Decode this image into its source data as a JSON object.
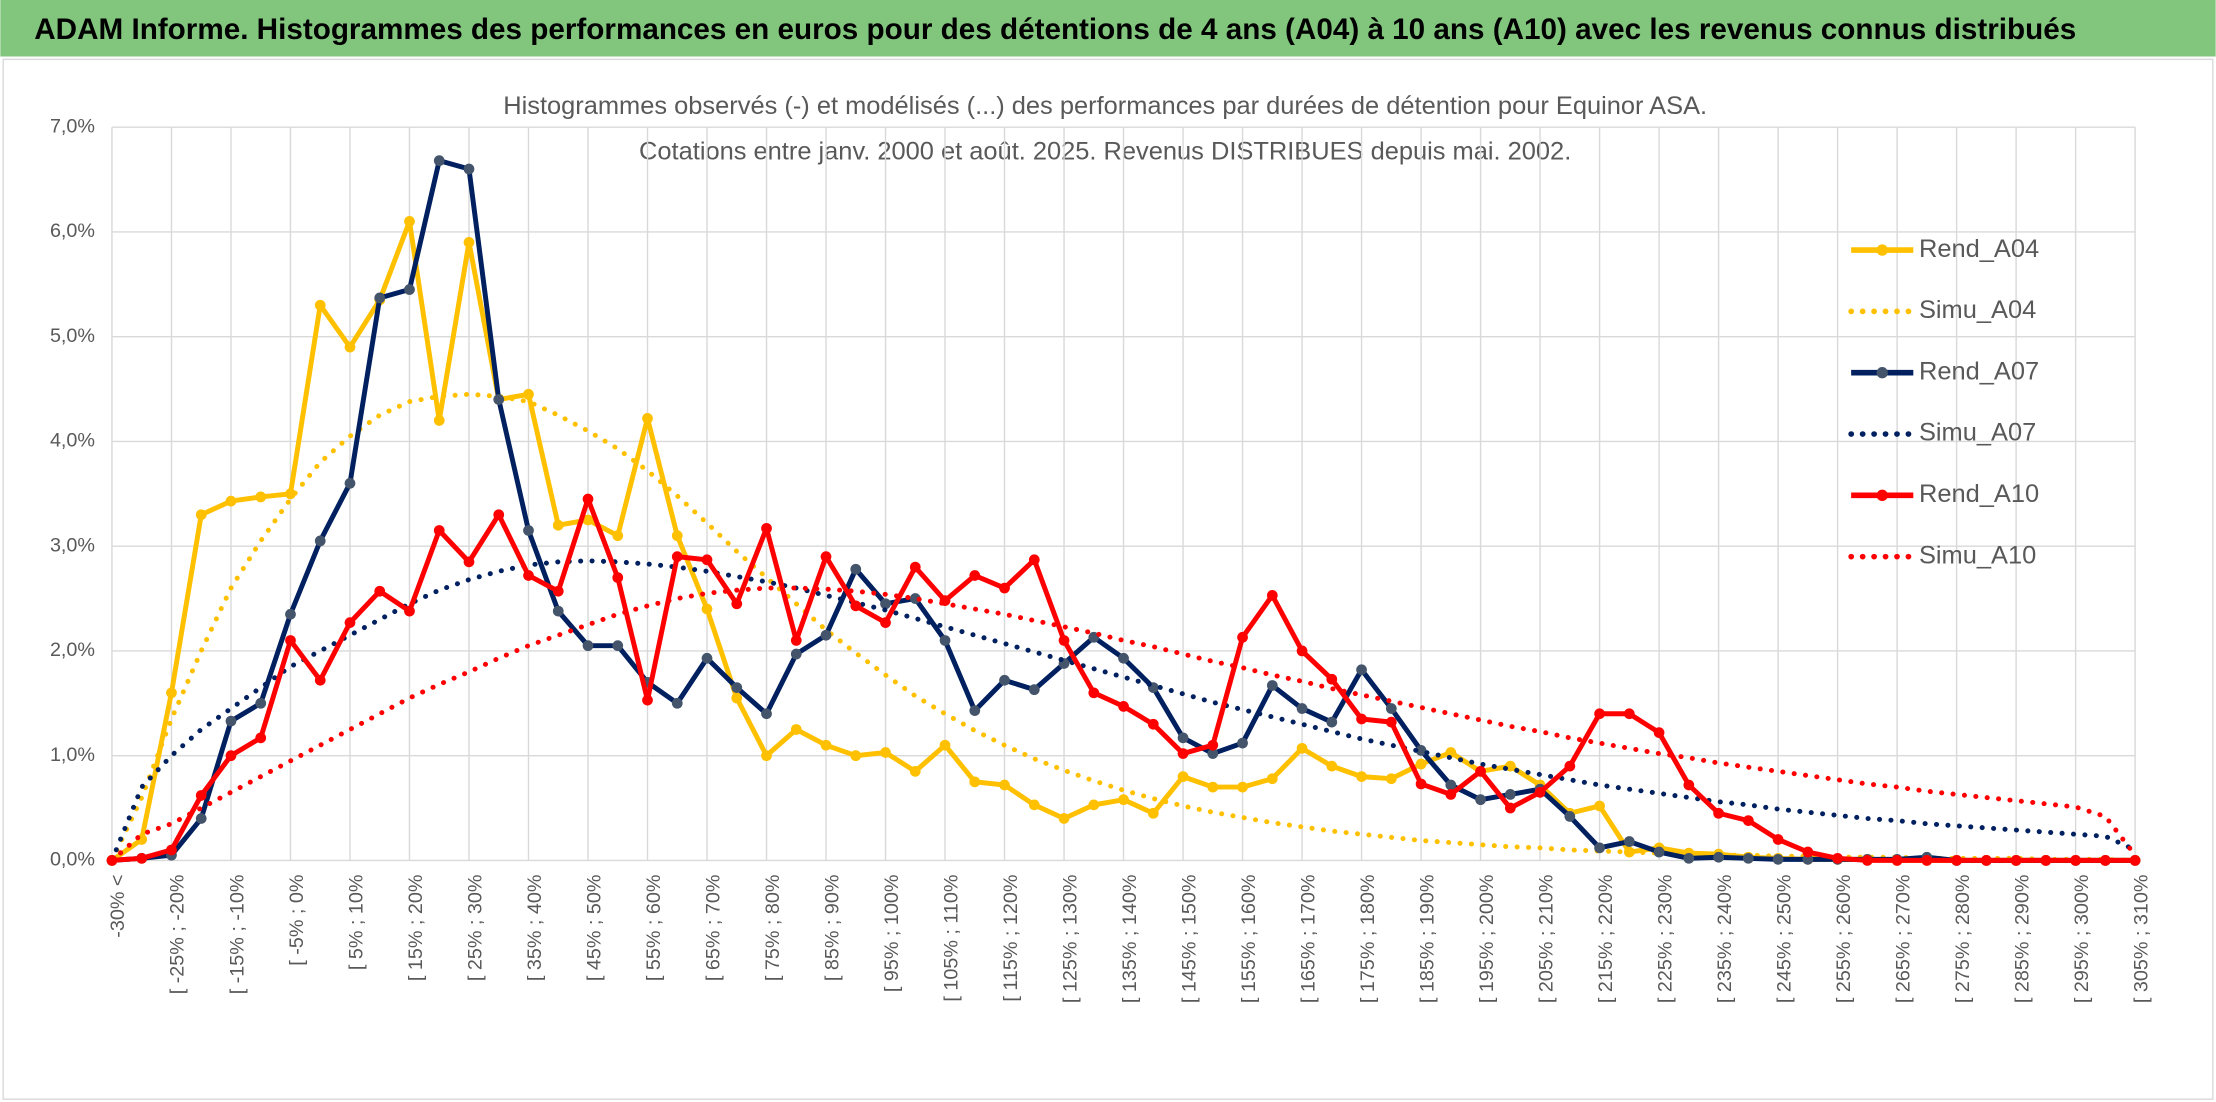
{
  "header": {
    "title": "ADAM Informe. Histogrammes des performances en euros pour des détentions de 4 ans (A04) à 10 ans (A10) avec les revenus connus distribués"
  },
  "chart_data": {
    "type": "line",
    "title": [
      "Histogrammes observés (-) et modélisés (...) des performances par durées de détention pour Equinor ASA.",
      "Cotations entre janv. 2000 et août. 2025. Revenus DISTRIBUES depuis mai. 2002."
    ],
    "categories": [
      "-30% <",
      null,
      "[ -25% ; -20%",
      null,
      "[ -15% ; -10%",
      null,
      "[ -5% ; 0%",
      null,
      "[ 5% ; 10%",
      null,
      "[ 15% ; 20%",
      null,
      "[ 25% ; 30%",
      null,
      "[ 35% ; 40%",
      null,
      "[ 45% ; 50%",
      null,
      "[ 55% ; 60%",
      null,
      "[ 65% ; 70%",
      null,
      "[ 75% ; 80%",
      null,
      "[ 85% ; 90%",
      null,
      "[ 95% ; 100%",
      null,
      "[ 105% ; 110%",
      null,
      "[ 115% ; 120%",
      null,
      "[ 125% ; 130%",
      null,
      "[ 135% ; 140%",
      null,
      "[ 145% ; 150%",
      null,
      "[ 155% ; 160%",
      null,
      "[ 165% ; 170%",
      null,
      "[ 175% ; 180%",
      null,
      "[ 185% ; 190%",
      null,
      "[ 195% ; 200%",
      null,
      "[ 205% ; 210%",
      null,
      "[ 215% ; 220%",
      null,
      "[ 225% ; 230%",
      null,
      "[ 235% ; 240%",
      null,
      "[ 245% ; 250%",
      null,
      "[ 255% ; 260%",
      null,
      "[ 265% ; 270%",
      null,
      "[ 275% ; 280%",
      null,
      "[ 285% ; 290%",
      null,
      "[ 295% ; 300%",
      null,
      "[ 305% ; 310%"
    ],
    "series": [
      {
        "name": "Rend_A04",
        "color": "#FFC000",
        "line_style": "solid",
        "markers": true,
        "values": [
          0,
          0.2,
          1.6,
          3.3,
          3.43,
          3.47,
          3.5,
          5.3,
          4.9,
          5.35,
          6.1,
          4.2,
          5.9,
          4.4,
          4.45,
          3.2,
          3.25,
          3.1,
          4.22,
          3.1,
          2.4,
          1.55,
          1.0,
          1.25,
          1.1,
          1.0,
          1.03,
          0.85,
          1.1,
          0.75,
          0.72,
          0.53,
          0.4,
          0.53,
          0.58,
          0.45,
          0.8,
          0.7,
          0.7,
          0.78,
          1.07,
          0.9,
          0.8,
          0.78,
          0.92,
          1.03,
          0.85,
          0.9,
          0.72,
          0.45,
          0.52,
          0.08,
          0.12,
          0.07,
          0.06,
          0.03,
          0.02,
          0.01,
          0.01,
          0.01,
          0,
          0,
          0,
          0,
          0,
          0,
          0,
          0,
          0
        ]
      },
      {
        "name": "Simu_A04",
        "color": "#FFC000",
        "line_style": "dotted",
        "markers": false,
        "values": [
          0,
          0.6,
          1.35,
          2.0,
          2.6,
          3.05,
          3.45,
          3.8,
          4.05,
          4.25,
          4.38,
          4.43,
          4.45,
          4.43,
          4.38,
          4.25,
          4.1,
          3.93,
          3.72,
          3.48,
          3.22,
          2.95,
          2.7,
          2.45,
          2.2,
          1.98,
          1.77,
          1.57,
          1.4,
          1.24,
          1.1,
          0.97,
          0.86,
          0.76,
          0.67,
          0.59,
          0.52,
          0.46,
          0.41,
          0.36,
          0.32,
          0.28,
          0.25,
          0.22,
          0.19,
          0.17,
          0.15,
          0.13,
          0.12,
          0.1,
          0.09,
          0.08,
          0.07,
          0.06,
          0.05,
          0.05,
          0.04,
          0.04,
          0.03,
          0.03,
          0.03,
          0.02,
          0.02,
          0.02,
          0.02,
          0.01,
          0.01,
          0.01,
          0
        ]
      },
      {
        "name": "Rend_A07",
        "color": "#002060",
        "line_style": "solid",
        "markers": true,
        "marker_color": "#44546A",
        "values": [
          0,
          0.02,
          0.05,
          0.4,
          1.33,
          1.5,
          2.35,
          3.05,
          3.6,
          5.37,
          5.45,
          6.68,
          6.6,
          4.4,
          3.15,
          2.38,
          2.05,
          2.05,
          1.7,
          1.5,
          1.93,
          1.65,
          1.4,
          1.97,
          2.15,
          2.78,
          2.45,
          2.5,
          2.1,
          1.43,
          1.72,
          1.63,
          1.88,
          2.13,
          1.93,
          1.65,
          1.17,
          1.02,
          1.12,
          1.67,
          1.45,
          1.32,
          1.82,
          1.45,
          1.05,
          0.72,
          0.58,
          0.63,
          0.68,
          0.42,
          0.12,
          0.18,
          0.08,
          0.02,
          0.03,
          0.02,
          0.01,
          0.01,
          0.01,
          0.01,
          0.01,
          0.03,
          0,
          0,
          0,
          0,
          0,
          0,
          0
        ]
      },
      {
        "name": "Simu_A07",
        "color": "#002060",
        "line_style": "dotted",
        "markers": false,
        "values": [
          0,
          0.7,
          1.0,
          1.25,
          1.45,
          1.65,
          1.85,
          2.0,
          2.15,
          2.3,
          2.45,
          2.58,
          2.68,
          2.76,
          2.82,
          2.85,
          2.86,
          2.85,
          2.83,
          2.8,
          2.76,
          2.71,
          2.66,
          2.6,
          2.53,
          2.46,
          2.39,
          2.31,
          2.23,
          2.15,
          2.07,
          1.99,
          1.91,
          1.83,
          1.75,
          1.67,
          1.59,
          1.51,
          1.44,
          1.37,
          1.3,
          1.23,
          1.16,
          1.1,
          1.04,
          0.98,
          0.92,
          0.87,
          0.82,
          0.77,
          0.72,
          0.68,
          0.64,
          0.6,
          0.56,
          0.53,
          0.49,
          0.46,
          0.43,
          0.4,
          0.38,
          0.35,
          0.33,
          0.31,
          0.29,
          0.27,
          0.25,
          0.23,
          0.1
        ]
      },
      {
        "name": "Rend_A10",
        "color": "#FF0000",
        "line_style": "solid",
        "markers": true,
        "values": [
          0,
          0.02,
          0.1,
          0.62,
          1.0,
          1.17,
          2.1,
          1.72,
          2.27,
          2.57,
          2.38,
          3.15,
          2.85,
          3.3,
          2.72,
          2.57,
          3.45,
          2.7,
          1.53,
          2.9,
          2.87,
          2.45,
          3.17,
          2.1,
          2.9,
          2.43,
          2.27,
          2.8,
          2.48,
          2.72,
          2.6,
          2.87,
          2.1,
          1.6,
          1.47,
          1.3,
          1.02,
          1.1,
          2.13,
          2.53,
          2.0,
          1.73,
          1.35,
          1.32,
          0.73,
          0.63,
          0.85,
          0.5,
          0.65,
          0.9,
          1.4,
          1.4,
          1.22,
          0.72,
          0.45,
          0.38,
          0.2,
          0.08,
          0.02,
          0,
          0,
          0,
          0,
          0,
          0,
          0,
          0,
          0,
          0
        ]
      },
      {
        "name": "Simu_A10",
        "color": "#FF0000",
        "line_style": "dotted",
        "markers": false,
        "values": [
          0,
          0.25,
          0.35,
          0.5,
          0.65,
          0.8,
          0.95,
          1.1,
          1.25,
          1.4,
          1.55,
          1.68,
          1.8,
          1.93,
          2.05,
          2.15,
          2.25,
          2.35,
          2.43,
          2.5,
          2.55,
          2.58,
          2.6,
          2.6,
          2.59,
          2.57,
          2.54,
          2.5,
          2.45,
          2.4,
          2.35,
          2.29,
          2.23,
          2.17,
          2.1,
          2.04,
          1.97,
          1.9,
          1.84,
          1.77,
          1.71,
          1.64,
          1.58,
          1.52,
          1.46,
          1.4,
          1.34,
          1.28,
          1.23,
          1.17,
          1.12,
          1.07,
          1.02,
          0.98,
          0.93,
          0.89,
          0.85,
          0.81,
          0.77,
          0.73,
          0.7,
          0.66,
          0.63,
          0.6,
          0.57,
          0.54,
          0.51,
          0.42,
          0.05
        ]
      }
    ],
    "ylim": [
      0,
      7
    ],
    "yticks": [
      {
        "value": 0,
        "label": "0,0%"
      },
      {
        "value": 1,
        "label": "1,0%"
      },
      {
        "value": 2,
        "label": "2,0%"
      },
      {
        "value": 3,
        "label": "3,0%"
      },
      {
        "value": 4,
        "label": "4,0%"
      },
      {
        "value": 5,
        "label": "5,0%"
      },
      {
        "value": 6,
        "label": "6,0%"
      },
      {
        "value": 7,
        "label": "7,0%"
      }
    ],
    "grid": true,
    "legend": "right"
  }
}
